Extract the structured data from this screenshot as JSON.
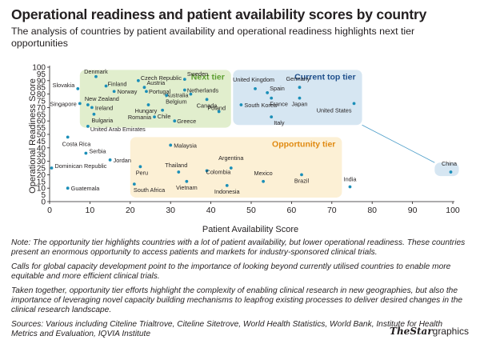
{
  "title": "Operational readiness and patient availability scores by country",
  "subtitle": "The analysis of countries by patient availability and operational readiness highlights next tier opportunities",
  "notes": [
    "Note: The opportunity tier highlights countries with a lot of patient availability, but lower operational readiness. These countries present an enormous opportunity to access patients and markets for industry-sponsored clinical trials.",
    "Calls for global capacity development point to the importance of looking beyond currently utilised countries to enable more equitable and more efficient clinical trials.",
    "Taken together, opportunity tier efforts highlight the complexity of enabling clinical research in new geographies, but also the importance of leveraging novel capacity building mechanisms to leapfrog existing processes to deliver desired changes in the clinical research landscape.",
    "Sources: Various including Citeline Trialtrove, Citeline Sitetrove, World Health Statistics, World Bank, Institute for Health Metrics and Evaluation, IQVIA Institute"
  ],
  "brand": {
    "the": "The",
    "star": "Star",
    "graphics": "graphics"
  },
  "colors": {
    "point": "#1b8fb8",
    "next_tier_fill": "#e1eecd",
    "next_tier_text": "#5c9e2f",
    "current_tier_fill": "#d6e6f2",
    "current_tier_text": "#1f4f8c",
    "opportunity_fill": "#fcf0d5",
    "opportunity_text": "#e08a12"
  },
  "chart_data": {
    "type": "scatter",
    "xlabel": "Patient Availability Score",
    "ylabel": "Operational Readiness Score",
    "xlim": [
      0,
      100
    ],
    "ylim": [
      0,
      100
    ],
    "xticks": [
      0,
      10,
      20,
      30,
      40,
      50,
      60,
      70,
      80,
      90,
      100
    ],
    "yticks": [
      0,
      5,
      10,
      15,
      20,
      25,
      30,
      35,
      40,
      45,
      50,
      55,
      60,
      65,
      70,
      75,
      80,
      85,
      90,
      95,
      100
    ],
    "tiers": [
      {
        "name": "Next tier",
        "x_range": [
          7.5,
          45
        ],
        "y_range": [
          55,
          98
        ]
      },
      {
        "name": "Current top tier",
        "x_range": [
          45.5,
          77.5
        ],
        "y_range": [
          57,
          98
        ]
      },
      {
        "name": "Opportunity tier",
        "x_range": [
          20,
          72.5
        ],
        "y_range": [
          3,
          48
        ]
      },
      {
        "name": "",
        "x_range": [
          95.5,
          101.5
        ],
        "y_range": [
          19,
          29
        ]
      }
    ],
    "points": [
      {
        "name": "Denmark",
        "x": 11.5,
        "y": 93
      },
      {
        "name": "Slovakia",
        "x": 7,
        "y": 84
      },
      {
        "name": "Finland",
        "x": 14,
        "y": 86
      },
      {
        "name": "Norway",
        "x": 16,
        "y": 82
      },
      {
        "name": "Singapore",
        "x": 7.5,
        "y": 73
      },
      {
        "name": "New Zealand",
        "x": 9.5,
        "y": 72
      },
      {
        "name": "Ireland",
        "x": 10.5,
        "y": 70
      },
      {
        "name": "Bulgaria",
        "x": 11,
        "y": 65
      },
      {
        "name": "United Arab Emirates",
        "x": 9.5,
        "y": 56
      },
      {
        "name": "Czech Republic",
        "x": 22,
        "y": 90
      },
      {
        "name": "Austria",
        "x": 23.5,
        "y": 85
      },
      {
        "name": "Portugal",
        "x": 24,
        "y": 82
      },
      {
        "name": "Sweden",
        "x": 33.5,
        "y": 91
      },
      {
        "name": "Netherlands",
        "x": 33.5,
        "y": 83
      },
      {
        "name": "Australia",
        "x": 35,
        "y": 80
      },
      {
        "name": "Belgium",
        "x": 29,
        "y": 79
      },
      {
        "name": "Hungary",
        "x": 24.5,
        "y": 72
      },
      {
        "name": "Canada",
        "x": 39,
        "y": 76
      },
      {
        "name": "Chile",
        "x": 28,
        "y": 68
      },
      {
        "name": "Poland",
        "x": 42,
        "y": 67
      },
      {
        "name": "Romania",
        "x": 26,
        "y": 63
      },
      {
        "name": "Greece",
        "x": 31,
        "y": 60
      },
      {
        "name": "United Kingdom",
        "x": 51,
        "y": 84
      },
      {
        "name": "Spain",
        "x": 54,
        "y": 81
      },
      {
        "name": "Germany",
        "x": 62,
        "y": 85
      },
      {
        "name": "France",
        "x": 55,
        "y": 77
      },
      {
        "name": "Japan",
        "x": 62,
        "y": 77
      },
      {
        "name": "South Korea",
        "x": 47.5,
        "y": 72
      },
      {
        "name": "United States",
        "x": 75.5,
        "y": 73
      },
      {
        "name": "Italy",
        "x": 55,
        "y": 63
      },
      {
        "name": "Costa Rica",
        "x": 4.5,
        "y": 48
      },
      {
        "name": "Serbia",
        "x": 9,
        "y": 36
      },
      {
        "name": "Jordan",
        "x": 15,
        "y": 31
      },
      {
        "name": "Dominican Republic",
        "x": 0.5,
        "y": 25
      },
      {
        "name": "Guatemala",
        "x": 4.5,
        "y": 10
      },
      {
        "name": "Malaysia",
        "x": 30,
        "y": 42
      },
      {
        "name": "Peru",
        "x": 22.5,
        "y": 26
      },
      {
        "name": "Thailand",
        "x": 32,
        "y": 22
      },
      {
        "name": "Vietnam",
        "x": 34,
        "y": 15
      },
      {
        "name": "South Africa",
        "x": 21,
        "y": 13
      },
      {
        "name": "Argentina",
        "x": 45,
        "y": 25
      },
      {
        "name": "Colombia",
        "x": 39,
        "y": 23
      },
      {
        "name": "Indonesia",
        "x": 44,
        "y": 12
      },
      {
        "name": "Mexico",
        "x": 53,
        "y": 15
      },
      {
        "name": "Brazil",
        "x": 62.5,
        "y": 20
      },
      {
        "name": "India",
        "x": 74.5,
        "y": 11
      },
      {
        "name": "China",
        "x": 99.5,
        "y": 22
      }
    ]
  }
}
